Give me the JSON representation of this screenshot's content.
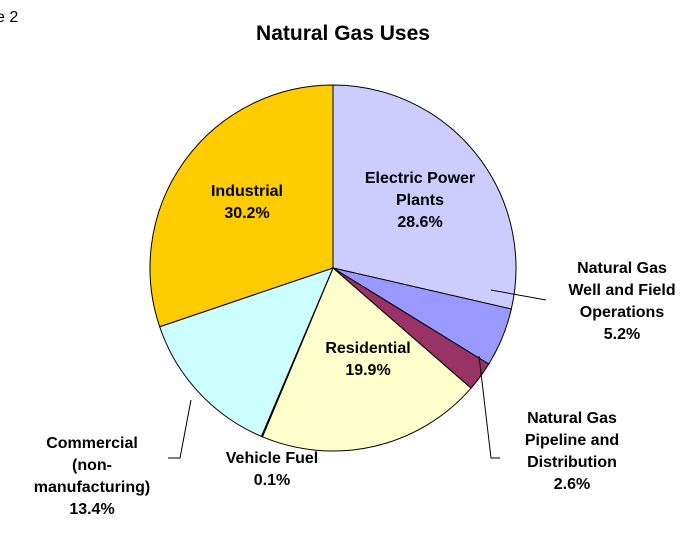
{
  "corner_text": "e 2",
  "chart_data": {
    "type": "pie",
    "title": "Natural Gas Uses",
    "categories": [
      "Electric Power\nPlants",
      "Natural Gas\nWell and Field\nOperations",
      "Natural Gas\nPipeline and\nDistribution",
      "Residential",
      "Vehicle Fuel",
      "Commercial\n(non-\nmanufacturing)",
      "Industrial"
    ],
    "values": [
      28.6,
      5.2,
      2.6,
      19.9,
      0.1,
      13.4,
      30.2
    ],
    "value_labels": [
      "28.6%",
      "5.2%",
      "2.6%",
      "19.9%",
      "0.1%",
      "13.4%",
      "30.2%"
    ],
    "colors": [
      "#ccccff",
      "#9999ff",
      "#993366",
      "#ffffcc",
      "#ffffff",
      "#ccffff",
      "#ffcc00"
    ]
  }
}
